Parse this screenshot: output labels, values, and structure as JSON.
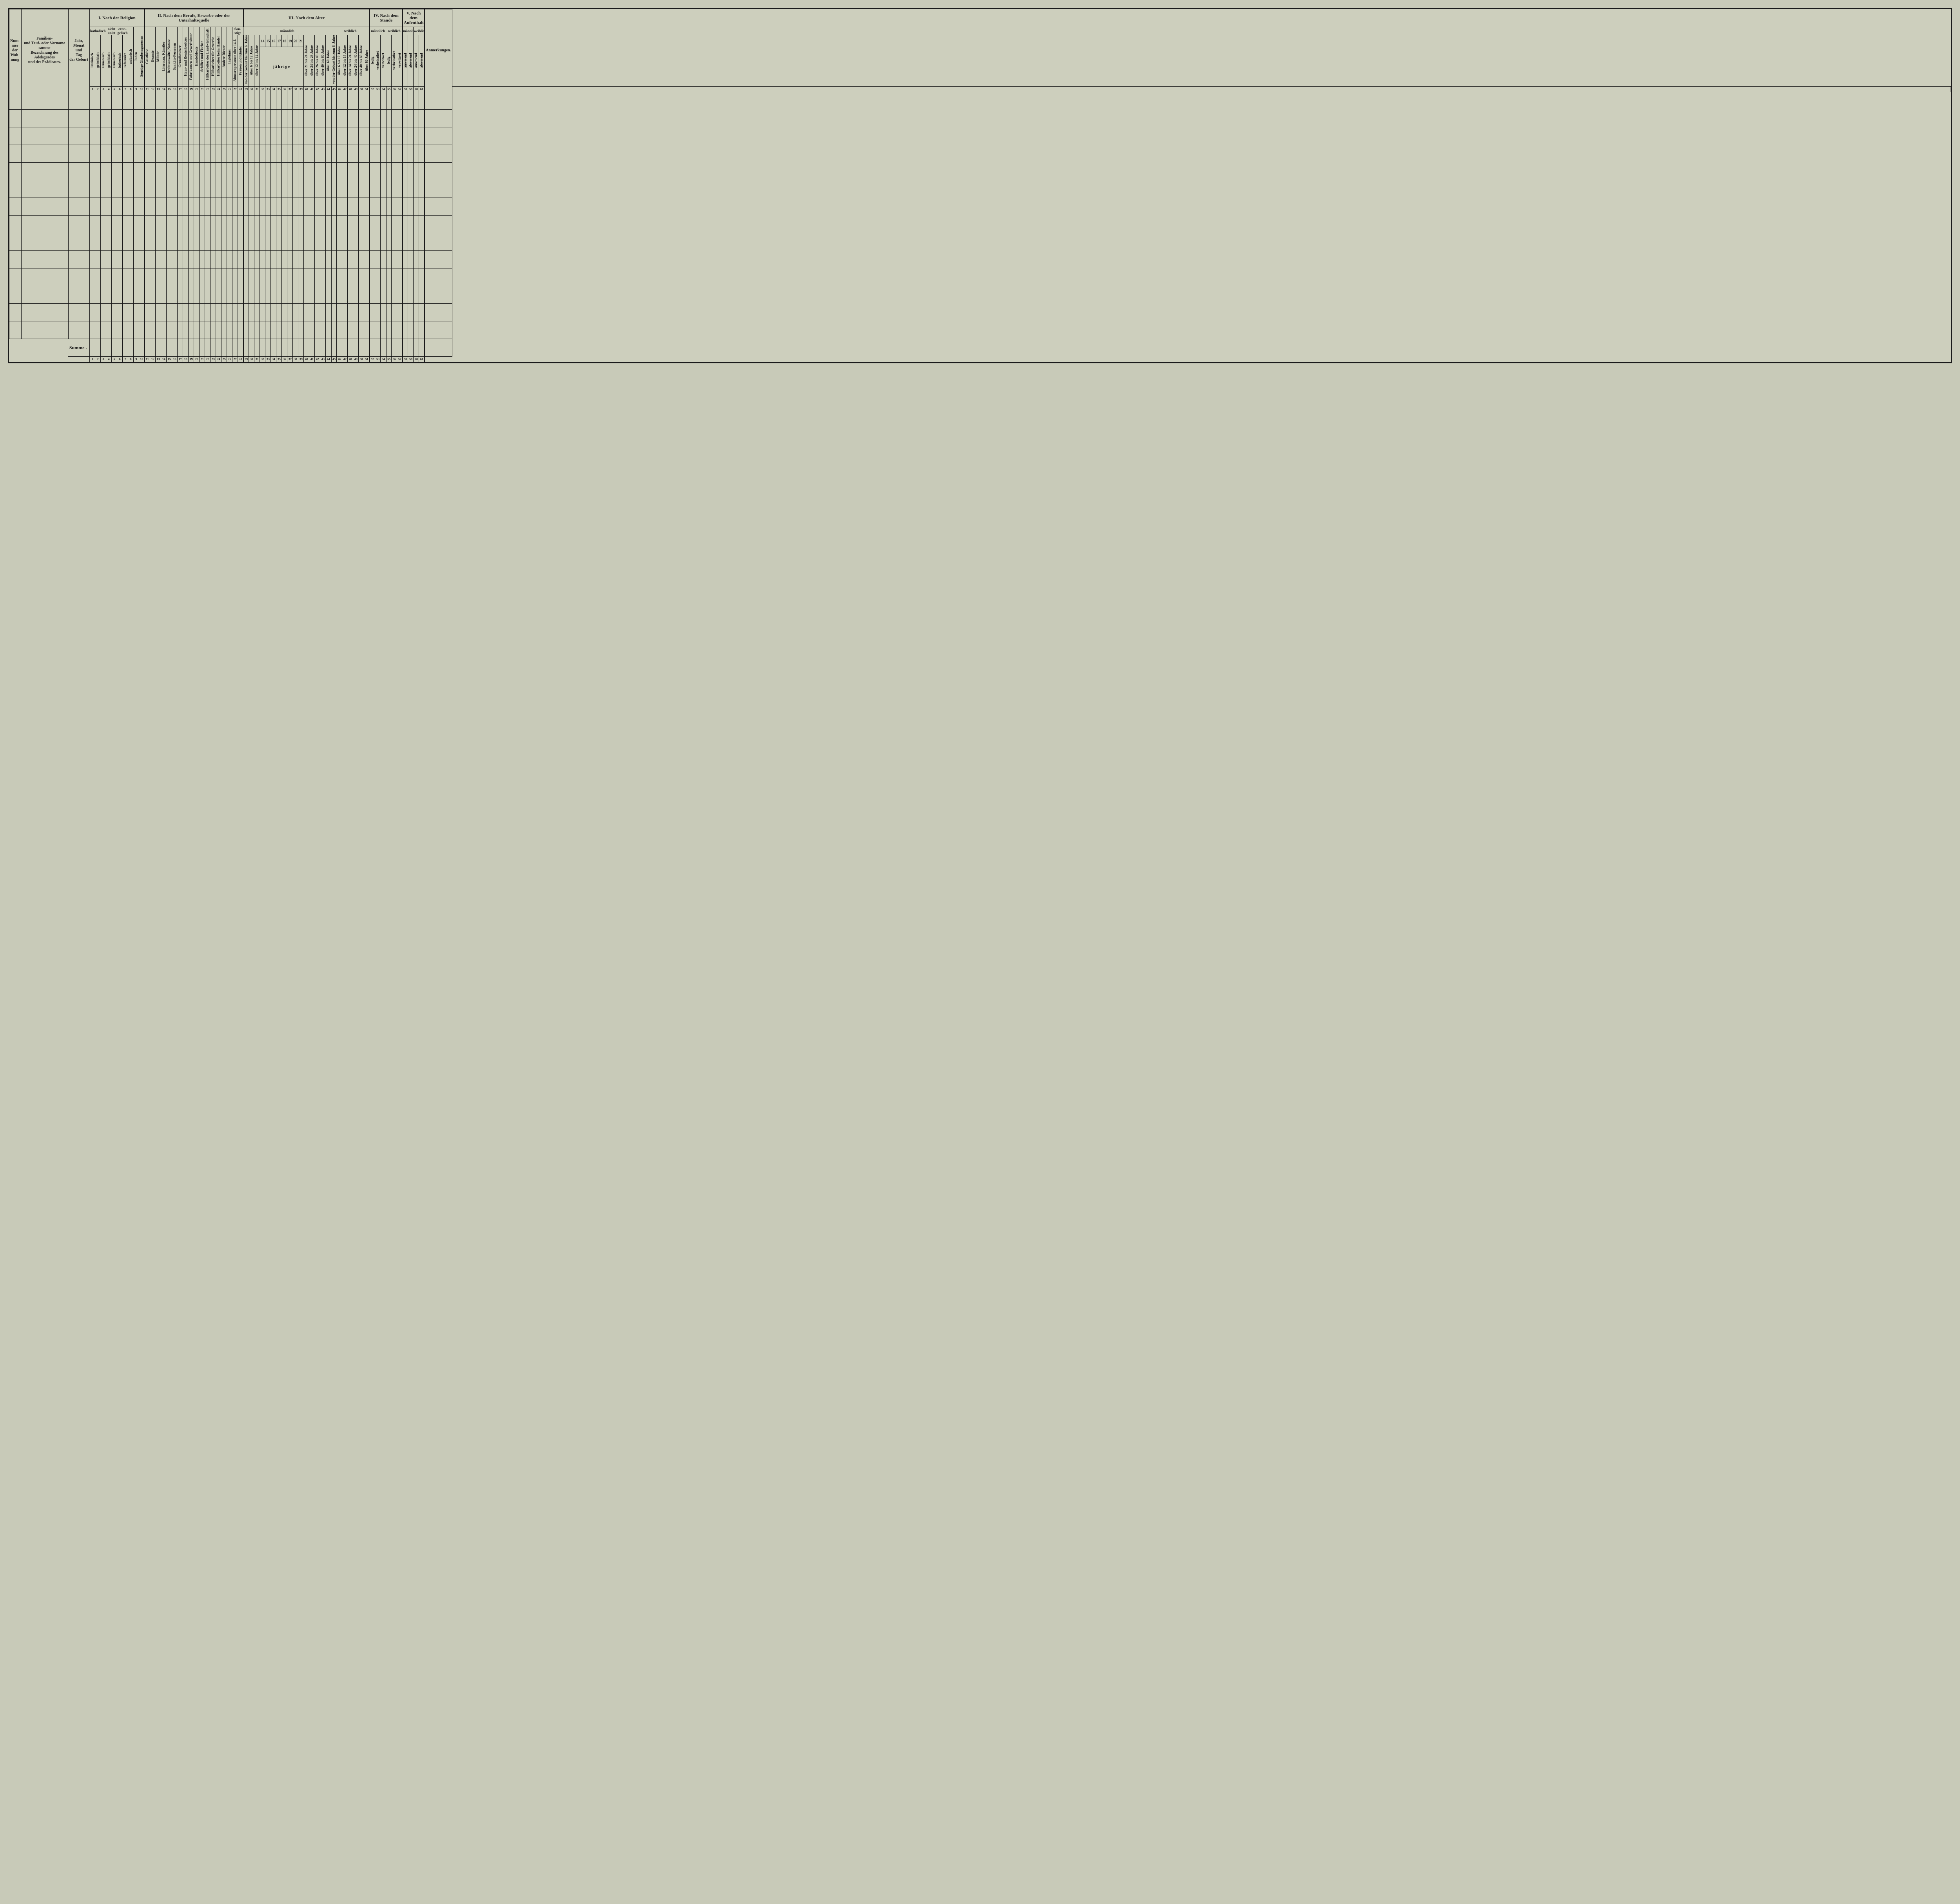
{
  "header": {
    "col_nummer": "Num-\nmer\nder\nWoh-\nnung",
    "col_name": "Familien-\nund Tauf- oder Vorname\nsamme\nBezeichnung des Adelsgrades\nund des Prädicates.",
    "col_birth": "Jahr, Monat\nund\nTag\nder Geburt",
    "col_remarks": "Anmerkungen.",
    "sec1": "I. Nach der Religion",
    "sec2": "II. Nach dem Berufe, Erwerbe oder der\nUnterhaltsquelle",
    "sec3": "III. Nach dem Alter",
    "sec4": "IV. Nach dem Stande",
    "sec5": "V. Nach dem\nAufenthalte",
    "sub_katholisch": "katholisch",
    "sub_nicht_unirt": "nicht\nunirt",
    "sub_evangelisch": "evan-\ngelisch",
    "sub_sonstige": "Son-\nstige",
    "sub_maennlich": "männlich",
    "sub_weiblich": "weiblich",
    "jahrige": "jährige",
    "age_nums": [
      "14",
      "15",
      "16",
      "17",
      "18",
      "19",
      "20",
      "21"
    ],
    "summe": "Summe ."
  },
  "vcols": {
    "c1": "lateinisch",
    "c2": "griechisch",
    "c3": "armenisch",
    "c4": "griechisch",
    "c5": "armenisch",
    "c6": "lutherisch",
    "c7": "reformirt",
    "c8": "unitarisch",
    "c9": "Juden",
    "c10": "Sonstige Glaubensgenossen",
    "c11": "Geistliche",
    "c12": "Beamte",
    "c13": "Militär",
    "c14": "Literaten, Künstler",
    "c15": "Rechtsanwälte, Notare",
    "c16": "Sanitäts-Personen",
    "c17": "Grundbesitzer",
    "c18": "Haus- und Rentenbesitzer",
    "c19": "Fabrikanten und Gewerbsleute",
    "c20": "Handelsleute",
    "c21": "Schiffer und Fischer",
    "c22": "Hilfsarbeiter der Landwirthschaft",
    "c23": "Hilfsarbeiter für Gewerbe",
    "c24": "Hilfsarbeiter beim Handel",
    "c25": "Andere Diener",
    "c26": "Taglöhner",
    "c27": "Almosenpersonen über 14 J.",
    "c28": "Frauen und Kinder",
    "c29": "von der Geburt bis zum 6. Jahre",
    "c30": "über 6 bis 12 Jahre",
    "c31": "über 12 bis 14 Jahre",
    "c40": "über 21 bis 24 Jahre",
    "c41": "über 24 bis 26 Jahre",
    "c42": "über 26 bis 40 Jahre",
    "c43": "über 40 bis 60 Jahre",
    "c44": "über 60 Jahre",
    "c45": "von der Geburt bis zum 6. Jahre",
    "c46": "über 6 bis 12 Jahre",
    "c47": "über 12 bis 14 Jahre",
    "c48": "über 14 bis 24 Jahre",
    "c49": "über 24 bis 40 Jahre",
    "c50": "über 40 bis 60 Jahre",
    "c51": "über 60 Jahre",
    "c52": "ledig",
    "c53": "verheirathet",
    "c54": "verwitwet",
    "c55": "ledig",
    "c56": "verheirathet",
    "c57": "verwitwet",
    "c58": "anwesend",
    "c59": "abwesend",
    "c60": "anwesend",
    "c61": "abwesend"
  },
  "nums": [
    "1",
    "2",
    "3",
    "4",
    "5",
    "6",
    "7",
    "8",
    "9",
    "10",
    "11",
    "12",
    "13",
    "14",
    "15",
    "16",
    "17",
    "18",
    "19",
    "20",
    "21",
    "22",
    "23",
    "24",
    "25",
    "26",
    "27",
    "28",
    "29",
    "30",
    "31",
    "32",
    "33",
    "34",
    "35",
    "36",
    "37",
    "38",
    "39",
    "40",
    "41",
    "42",
    "43",
    "44",
    "45",
    "46",
    "47",
    "48",
    "49",
    "50",
    "51",
    "52",
    "53",
    "54",
    "55",
    "56",
    "57",
    "58",
    "59",
    "60",
    "61"
  ],
  "body_rows": 14,
  "colors": {
    "paper": "#cdcfbd",
    "ink": "#1a1a1a"
  }
}
